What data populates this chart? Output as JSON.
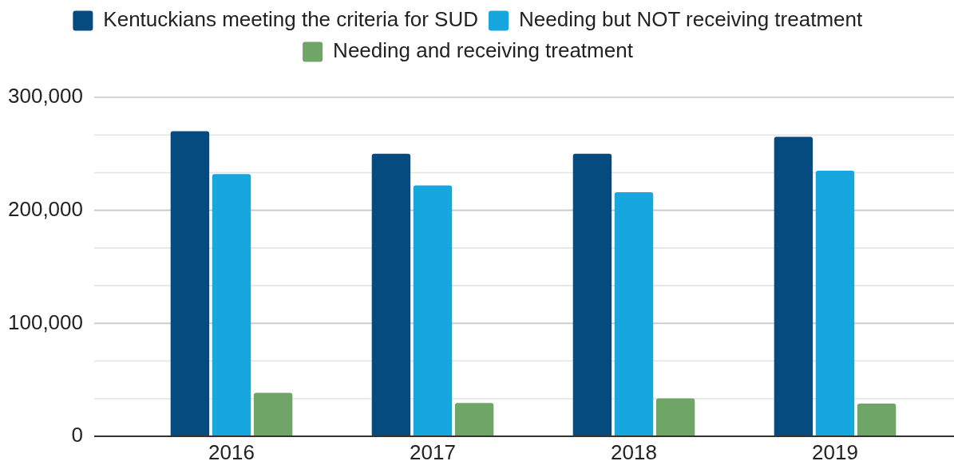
{
  "chart_data": {
    "type": "bar",
    "categories": [
      "2016",
      "2017",
      "2018",
      "2019"
    ],
    "series": [
      {
        "name": "Kentuckians meeting the criteria for SUD",
        "color": "#064b80",
        "values": [
          270000,
          250000,
          250000,
          265000
        ]
      },
      {
        "name": "Needing but NOT receiving treatment",
        "color": "#18a6df",
        "values": [
          232000,
          222000,
          216000,
          235000
        ]
      },
      {
        "name": "Needing and receiving treatment",
        "color": "#6fa567",
        "values": [
          38500,
          29500,
          33500,
          29000
        ]
      }
    ],
    "ylim": [
      0,
      300000
    ],
    "yticks": [
      0,
      {
        "value": 33333,
        "label": null
      },
      {
        "value": 66667,
        "label": null
      },
      {
        "value": 100000,
        "label": "100,000"
      },
      {
        "value": 133333,
        "label": null
      },
      {
        "value": 166667,
        "label": null
      },
      {
        "value": 200000,
        "label": "200,000"
      },
      {
        "value": 233333,
        "label": null
      },
      {
        "value": 266667,
        "label": null
      },
      {
        "value": 300000,
        "label": "300,000"
      }
    ],
    "grid": "y",
    "legend": "top"
  }
}
